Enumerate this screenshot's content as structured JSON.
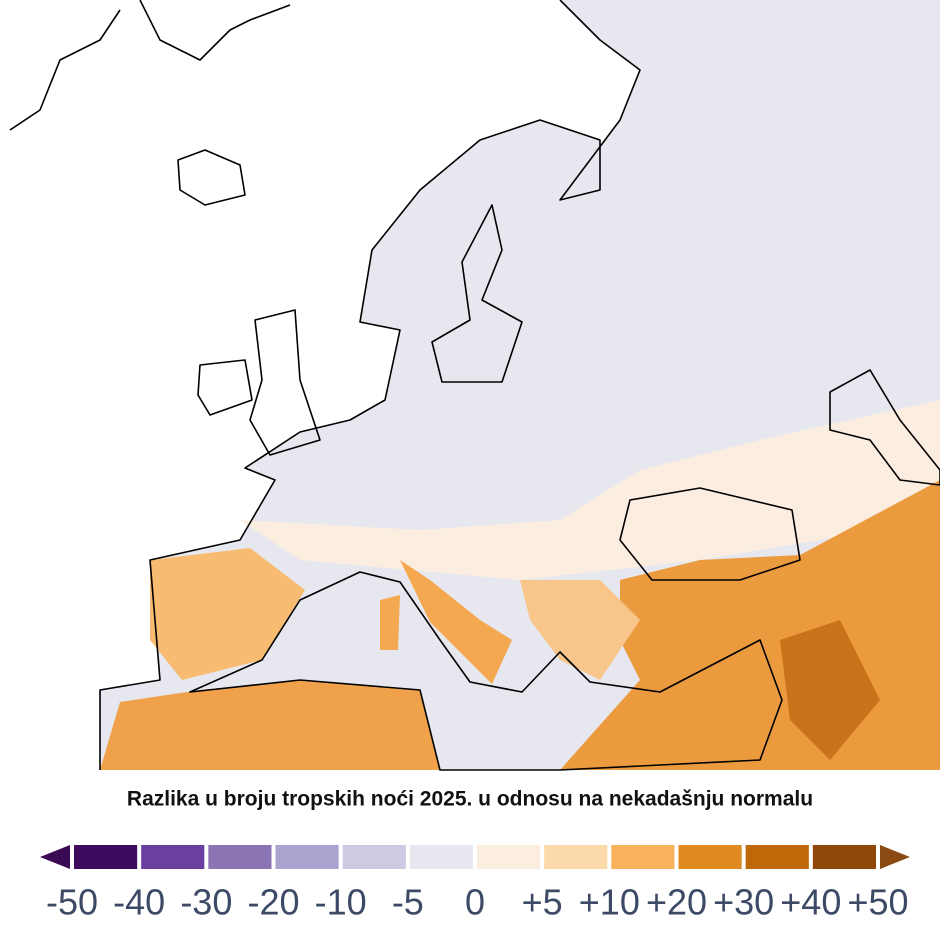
{
  "title": "Razlika u broju tropskih noći 2025. u odnosu na nekadašnju normalu",
  "colorbar": {
    "colors": [
      "#3e0a5e",
      "#6b3fa0",
      "#8a74b4",
      "#aba3cf",
      "#cdcae4",
      "#e7e7ef",
      "#fbeee0",
      "#fcd9a8",
      "#f8b25e",
      "#e08a22",
      "#c0690b",
      "#8f470a"
    ],
    "low_color": "#3b0a55",
    "high_color": "#8a4a12",
    "ticks": [
      -50,
      -40,
      -30,
      -20,
      -10,
      -5,
      0,
      {
        "value": 5,
        "label": "+5"
      },
      {
        "value": 10,
        "label": "+10"
      },
      {
        "value": 20,
        "label": "+20"
      },
      {
        "value": 30,
        "label": "+30"
      },
      {
        "value": 40,
        "label": "+40"
      },
      {
        "value": 50,
        "label": "+50"
      }
    ]
  }
}
